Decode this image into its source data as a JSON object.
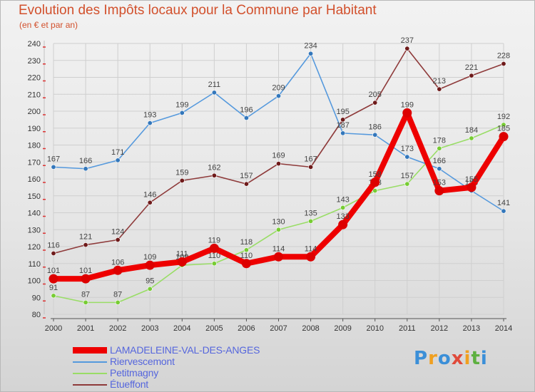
{
  "title": "Evolution des Impôts locaux pour la Commune par Habitant",
  "subtitle": "(en € et par an)",
  "logo": {
    "letters": [
      "P",
      "r",
      "o",
      "x",
      "i",
      "t",
      "i"
    ],
    "colors": [
      "#3b8fd8",
      "#f0a020",
      "#3b8fd8",
      "#e04a3a",
      "#f0a020",
      "#5db040",
      "#3b8fd8"
    ]
  },
  "chart_data": {
    "type": "line",
    "title": "Evolution des Impôts locaux pour la Commune par Habitant",
    "subtitle": "(en € et par an)",
    "categories": [
      "2000",
      "2001",
      "2002",
      "2003",
      "2004",
      "2005",
      "2006",
      "2007",
      "2008",
      "2009",
      "2010",
      "2011",
      "2012",
      "2013",
      "2014"
    ],
    "ylim": [
      80,
      240
    ],
    "yticks": [
      80,
      90,
      100,
      110,
      120,
      130,
      140,
      150,
      160,
      170,
      180,
      190,
      200,
      210,
      220,
      230,
      240
    ],
    "grid": true,
    "legend_position": "bottom-left",
    "series": [
      {
        "name": "Petitmagny",
        "color": "#99dd66",
        "dot": "#77cc33",
        "values": [
          91,
          87,
          87,
          95,
          109,
          110,
          118,
          130,
          135,
          143,
          153,
          157,
          178,
          184,
          192
        ]
      },
      {
        "name": "Étueffont",
        "color": "#8e3a3a",
        "dot": "#6e1a1a",
        "values": [
          116,
          121,
          124,
          146,
          159,
          162,
          157,
          169,
          167,
          195,
          205,
          237,
          213,
          221,
          228
        ]
      },
      {
        "name": "Riervescemont",
        "color": "#5599dd",
        "dot": "#3377bb",
        "values": [
          167,
          166,
          171,
          193,
          199,
          211,
          196,
          209,
          234,
          187,
          186,
          173,
          166,
          153,
          141
        ]
      },
      {
        "name": "LAMADELEINE-VAL-DES-ANGES",
        "color": "#ee0000",
        "dot": "#dd0000",
        "values": [
          101,
          101,
          106,
          109,
          111,
          119,
          110,
          114,
          114,
          133,
          158,
          199,
          153,
          155,
          185
        ]
      }
    ],
    "legend": [
      "LAMADELEINE-VAL-DES-ANGES",
      "Riervescemont",
      "Petitmagny",
      "Étueffont"
    ]
  }
}
